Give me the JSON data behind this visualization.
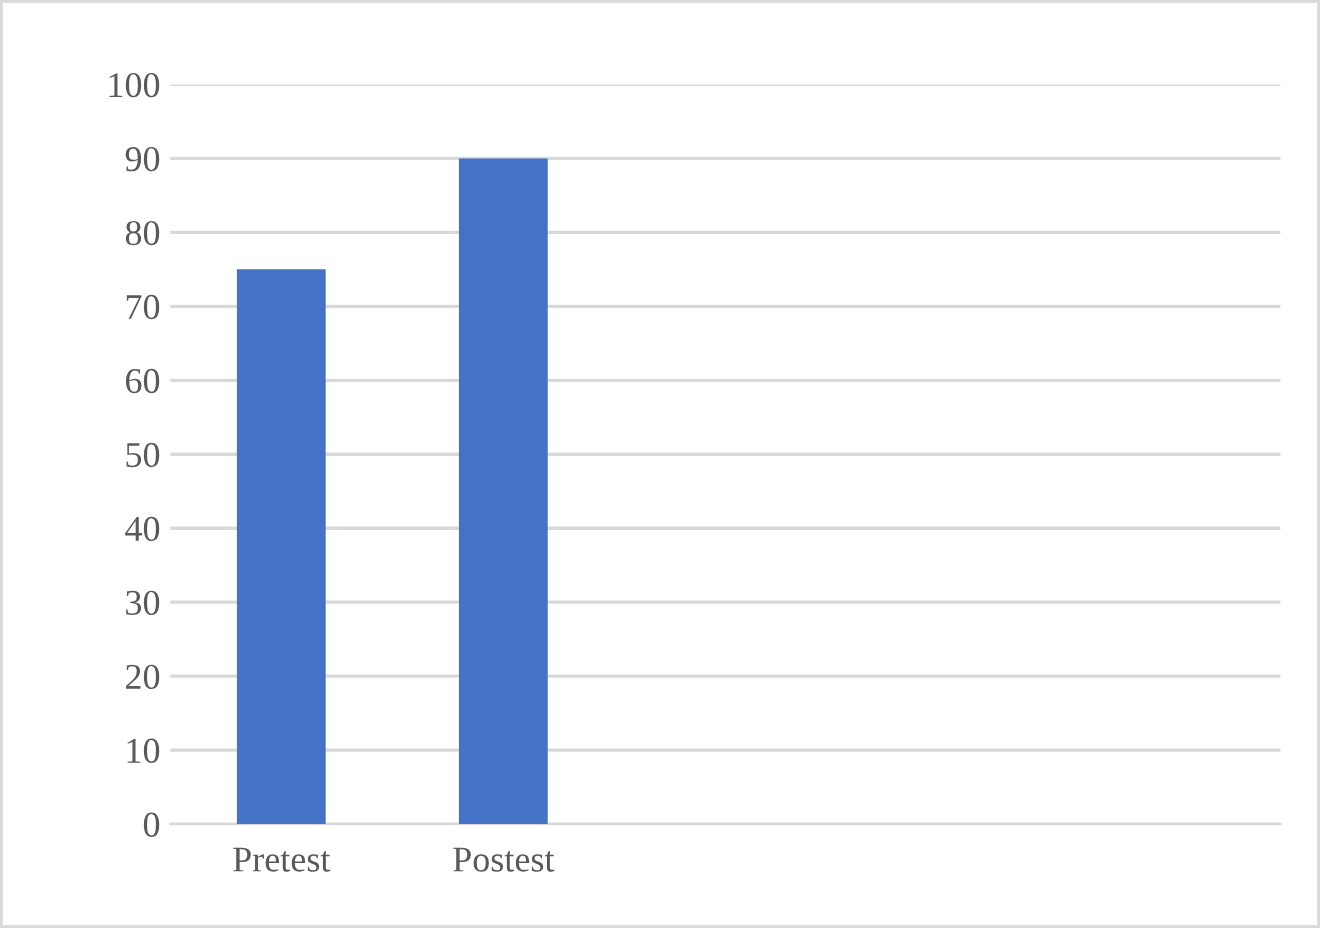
{
  "chart_data": {
    "type": "bar",
    "categories": [
      "Pretest",
      "Postest",
      null,
      null,
      null
    ],
    "values": [
      75,
      90,
      null,
      null,
      null
    ],
    "color": "#4472c4",
    "ylim": [
      0,
      100
    ],
    "yticks": [
      0,
      10,
      20,
      30,
      40,
      50,
      60,
      70,
      80,
      90,
      100
    ],
    "grid": "y",
    "legend": false
  }
}
